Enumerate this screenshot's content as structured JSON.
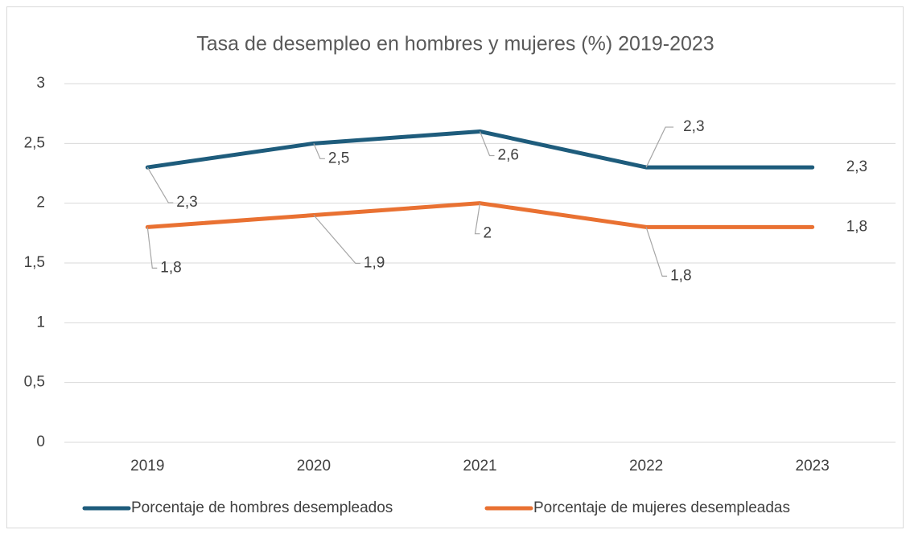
{
  "chart_data": {
    "type": "line",
    "title": "Tasa de desempleo en hombres y mujeres (%) 2019-2023",
    "categories": [
      "2019",
      "2020",
      "2021",
      "2022",
      "2023"
    ],
    "series": [
      {
        "name": "Porcentaje de hombres desempleados",
        "color": "#1e5c7c",
        "values": [
          2.3,
          2.5,
          2.6,
          2.3,
          2.3
        ],
        "value_labels": [
          "2,3",
          "2,5",
          "2,6",
          "2,3",
          "2,3"
        ]
      },
      {
        "name": "Porcentaje de mujeres desempleadas",
        "color": "#e97132",
        "values": [
          1.8,
          1.9,
          2,
          1.8,
          1.8
        ],
        "value_labels": [
          "1,8",
          "1,9",
          "2",
          "1,8",
          "1,8"
        ]
      }
    ],
    "ylim": [
      0,
      3
    ],
    "yticks": [
      0,
      {
        "value": 0.5,
        "label": "0,5"
      },
      1,
      {
        "value": 1.5,
        "label": "1,5"
      },
      2,
      {
        "value": 2.5,
        "label": "2,5"
      },
      3
    ],
    "grid": true,
    "legend": "bottom"
  }
}
